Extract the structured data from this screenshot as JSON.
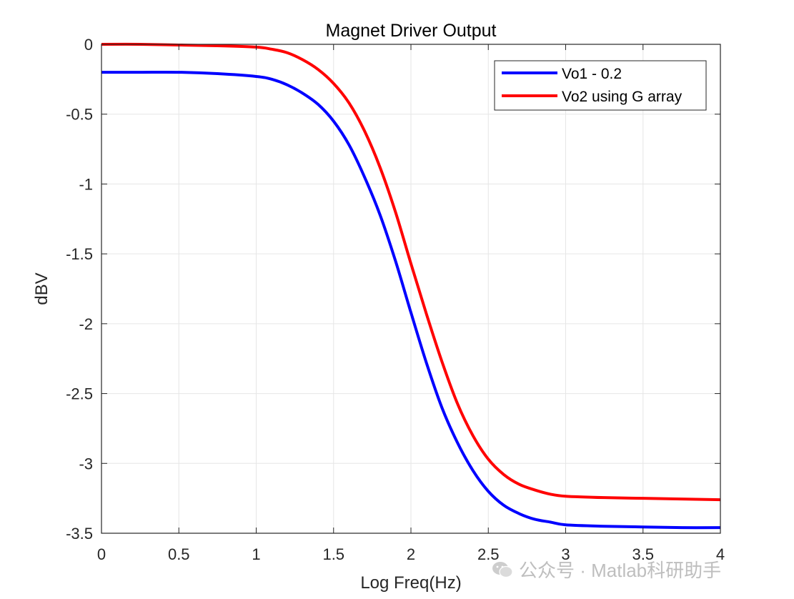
{
  "chart_data": {
    "type": "line",
    "title": "Magnet Driver Output",
    "xlabel": "Log Freq(Hz)",
    "ylabel": "dBV",
    "xlim": [
      0,
      4
    ],
    "ylim": [
      -3.5,
      0
    ],
    "xticks": [
      0,
      0.5,
      1,
      1.5,
      2,
      2.5,
      3,
      3.5,
      4
    ],
    "yticks": [
      0,
      -0.5,
      -1,
      -1.5,
      -2,
      -2.5,
      -3,
      -3.5
    ],
    "xtick_labels": [
      "0",
      "0.5",
      "1",
      "1.5",
      "2",
      "2.5",
      "3",
      "3.5",
      "4"
    ],
    "ytick_labels": [
      "0",
      "-0.5",
      "-1",
      "-1.5",
      "-2",
      "-2.5",
      "-3",
      "-3.5"
    ],
    "grid": true,
    "legend_position": "top-right",
    "series": [
      {
        "name": "Vo1 - 0.2",
        "color": "#0000ff",
        "x": [
          0,
          0.25,
          0.5,
          0.75,
          1.0,
          1.1,
          1.2,
          1.3,
          1.4,
          1.5,
          1.6,
          1.7,
          1.8,
          1.9,
          2.0,
          2.1,
          2.2,
          2.3,
          2.4,
          2.5,
          2.6,
          2.7,
          2.8,
          2.9,
          3.0,
          3.25,
          3.5,
          3.75,
          4.0
        ],
        "y": [
          -0.2,
          -0.2,
          -0.2,
          -0.21,
          -0.23,
          -0.25,
          -0.29,
          -0.35,
          -0.43,
          -0.55,
          -0.72,
          -0.95,
          -1.22,
          -1.55,
          -1.92,
          -2.28,
          -2.6,
          -2.85,
          -3.05,
          -3.2,
          -3.3,
          -3.36,
          -3.4,
          -3.42,
          -3.44,
          -3.45,
          -3.455,
          -3.46,
          -3.46
        ]
      },
      {
        "name": "Vo2 using G array",
        "color": "#ff0000",
        "x": [
          0,
          0.25,
          0.5,
          0.75,
          1.0,
          1.1,
          1.2,
          1.3,
          1.4,
          1.5,
          1.6,
          1.7,
          1.8,
          1.9,
          2.0,
          2.1,
          2.2,
          2.3,
          2.4,
          2.5,
          2.6,
          2.7,
          2.8,
          2.9,
          3.0,
          3.25,
          3.5,
          3.75,
          4.0
        ],
        "y": [
          0,
          0,
          -0.005,
          -0.01,
          -0.02,
          -0.035,
          -0.06,
          -0.11,
          -0.18,
          -0.28,
          -0.42,
          -0.62,
          -0.88,
          -1.2,
          -1.57,
          -1.93,
          -2.27,
          -2.57,
          -2.8,
          -2.97,
          -3.08,
          -3.15,
          -3.19,
          -3.22,
          -3.235,
          -3.245,
          -3.25,
          -3.255,
          -3.26
        ]
      }
    ]
  },
  "watermark": {
    "icon": "wechat-icon",
    "text": "公众号 · Matlab科研助手"
  }
}
